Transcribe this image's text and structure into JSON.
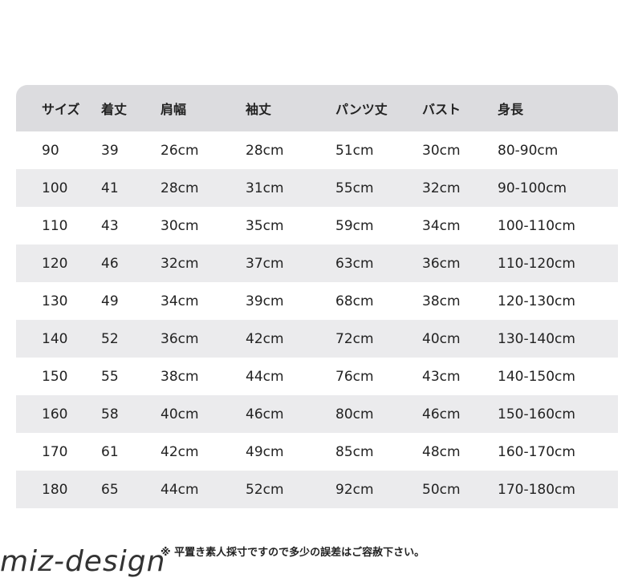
{
  "table": {
    "header": [
      "サイズ",
      "着丈",
      "肩幅",
      "袖丈",
      "パンツ丈",
      "バスト",
      "身長"
    ],
    "rows": [
      [
        "90",
        "39",
        "26cm",
        "28cm",
        "51cm",
        "30cm",
        "80-90cm"
      ],
      [
        "100",
        "41",
        "28cm",
        "31cm",
        "55cm",
        "32cm",
        "90-100cm"
      ],
      [
        "110",
        "43",
        "30cm",
        "35cm",
        "59cm",
        "34cm",
        "100-110cm"
      ],
      [
        "120",
        "46",
        "32cm",
        "37cm",
        "63cm",
        "36cm",
        "110-120cm"
      ],
      [
        "130",
        "49",
        "34cm",
        "39cm",
        "68cm",
        "38cm",
        "120-130cm"
      ],
      [
        "140",
        "52",
        "36cm",
        "42cm",
        "72cm",
        "40cm",
        "130-140cm"
      ],
      [
        "150",
        "55",
        "38cm",
        "44cm",
        "76cm",
        "43cm",
        "140-150cm"
      ],
      [
        "160",
        "58",
        "40cm",
        "46cm",
        "80cm",
        "46cm",
        "150-160cm"
      ],
      [
        "170",
        "61",
        "42cm",
        "49cm",
        "85cm",
        "48cm",
        "160-170cm"
      ],
      [
        "180",
        "65",
        "44cm",
        "52cm",
        "92cm",
        "50cm",
        "170-180cm"
      ]
    ]
  },
  "note": "※ 平置き素人採寸ですので多少の誤差はご容赦下さい。",
  "watermark": "miz-design"
}
